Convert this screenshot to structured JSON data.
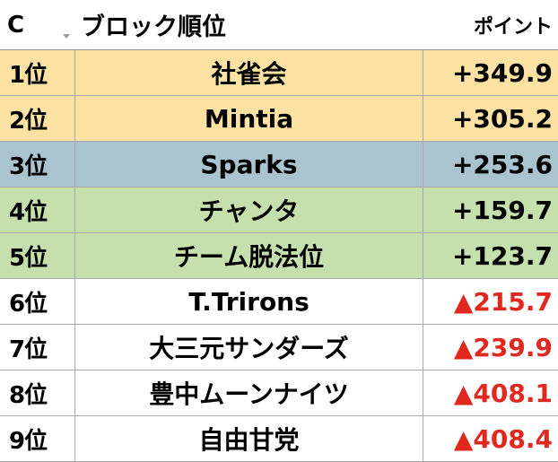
{
  "header": {
    "col_a": "C",
    "col_b": "ブロック順位",
    "col_c": "ポイント"
  },
  "colors": {
    "gold": "#fbe2a3",
    "blue": "#a9c4cf",
    "green": "#c5dfad",
    "white": "#ffffff",
    "negative": "#e0281e"
  },
  "rows": [
    {
      "rank": "1位",
      "team": "社雀会",
      "points": "+349.9",
      "band": "gold",
      "negative": false
    },
    {
      "rank": "2位",
      "team": "Mintia",
      "points": "+305.2",
      "band": "gold",
      "negative": false
    },
    {
      "rank": "3位",
      "team": "Sparks",
      "points": "+253.6",
      "band": "blue",
      "negative": false
    },
    {
      "rank": "4位",
      "team": "チャンタ",
      "points": "+159.7",
      "band": "green",
      "negative": false
    },
    {
      "rank": "5位",
      "team": "チーム脱法位",
      "points": "+123.7",
      "band": "green",
      "negative": false
    },
    {
      "rank": "6位",
      "team": "T.Trirons",
      "points": "▲215.7",
      "band": "white",
      "negative": true
    },
    {
      "rank": "7位",
      "team": "大三元サンダーズ",
      "points": "▲239.9",
      "band": "white",
      "negative": true
    },
    {
      "rank": "8位",
      "team": "豊中ムーンナイツ",
      "points": "▲408.1",
      "band": "white",
      "negative": true
    },
    {
      "rank": "9位",
      "team": "自由甘党",
      "points": "▲408.4",
      "band": "white",
      "negative": true
    }
  ]
}
